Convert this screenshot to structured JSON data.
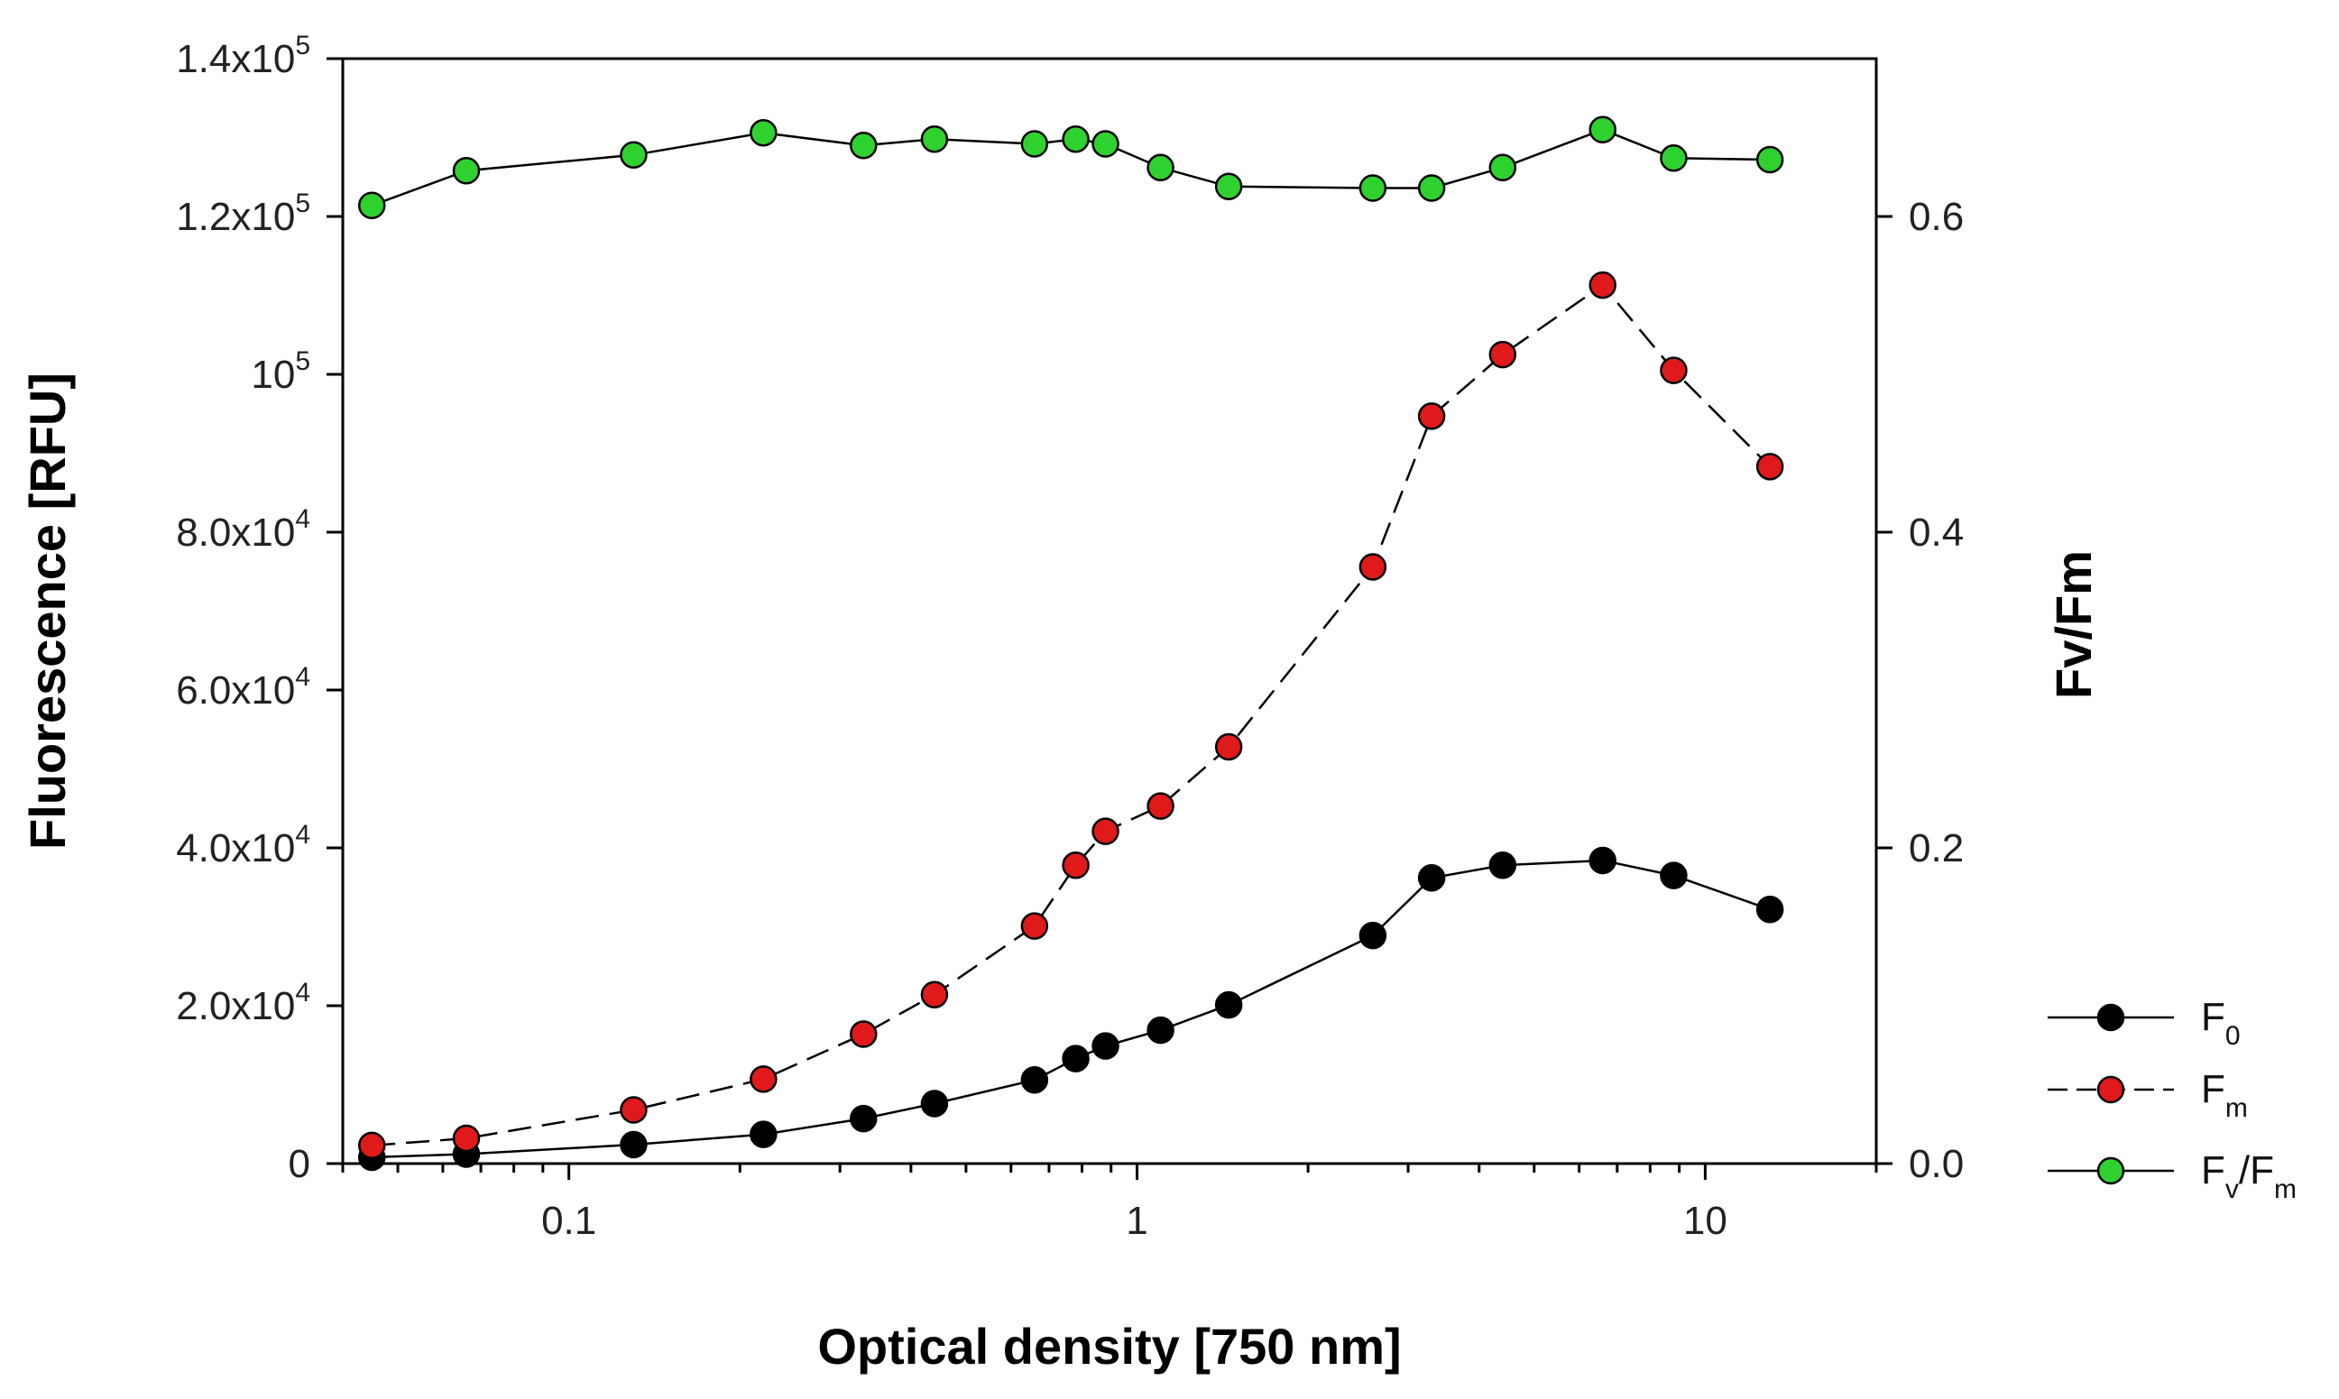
{
  "chart_data": {
    "type": "line",
    "xlabel": "Optical density [750 nm]",
    "ylabel": "Fluorescence [RFU]",
    "y2label": "Fv/Fm",
    "x_scale": "log",
    "xlim": [
      0.04,
      20
    ],
    "ylim": [
      0,
      140000
    ],
    "y2lim": [
      0,
      0.7
    ],
    "x_ticks": [
      {
        "value": 0.1,
        "label": "0.1"
      },
      {
        "value": 1,
        "label": "1"
      },
      {
        "value": 10,
        "label": "10"
      }
    ],
    "y_ticks": [
      {
        "value": 0,
        "mant": "0",
        "exp": ""
      },
      {
        "value": 20000,
        "mant": "2.0x10",
        "exp": "4"
      },
      {
        "value": 40000,
        "mant": "4.0x10",
        "exp": "4"
      },
      {
        "value": 60000,
        "mant": "6.0x10",
        "exp": "4"
      },
      {
        "value": 80000,
        "mant": "8.0x10",
        "exp": "4"
      },
      {
        "value": 100000,
        "mant": "10",
        "exp": "5"
      },
      {
        "value": 120000,
        "mant": "1.2x10",
        "exp": "5"
      },
      {
        "value": 140000,
        "mant": "1.4x10",
        "exp": "5"
      }
    ],
    "y2_ticks": [
      {
        "value": 0.0,
        "label": "0.0"
      },
      {
        "value": 0.2,
        "label": "0.2"
      },
      {
        "value": 0.4,
        "label": "0.4"
      },
      {
        "value": 0.6,
        "label": "0.6"
      }
    ],
    "x": [
      0.045,
      0.066,
      0.13,
      0.22,
      0.33,
      0.44,
      0.66,
      0.78,
      0.88,
      1.1,
      1.45,
      2.6,
      3.3,
      4.4,
      6.6,
      8.8,
      13.0
    ],
    "series": [
      {
        "name": "F0",
        "legend_main": "F",
        "legend_sub": "0",
        "legend_tail": "",
        "axis": "left",
        "marker_color": "#000000",
        "line_style": "solid",
        "values": [
          800,
          1200,
          2400,
          3700,
          5700,
          7600,
          10600,
          13300,
          14900,
          16900,
          20100,
          28900,
          36200,
          37800,
          38400,
          36500,
          32200
        ]
      },
      {
        "name": "Fm",
        "legend_main": "F",
        "legend_sub": "m",
        "legend_tail": "",
        "axis": "left",
        "marker_color": "#e0191b",
        "line_style": "dashed",
        "values": [
          2300,
          3200,
          6800,
          10700,
          16400,
          21400,
          30100,
          37800,
          42100,
          45300,
          52800,
          75600,
          94700,
          102500,
          111300,
          100500,
          88300
        ]
      },
      {
        "name": "Fv/Fm",
        "legend_main": "F",
        "legend_sub": "v",
        "legend_tail": "/F",
        "legend_tail_sub": "m",
        "axis": "right",
        "marker_color": "#2fd12f",
        "line_style": "solid",
        "values": [
          0.607,
          0.629,
          0.639,
          0.653,
          0.645,
          0.649,
          0.646,
          0.649,
          0.646,
          0.631,
          0.619,
          0.618,
          0.618,
          0.631,
          0.655,
          0.637,
          0.636
        ]
      }
    ],
    "legend_position": "bottom-right outside"
  }
}
